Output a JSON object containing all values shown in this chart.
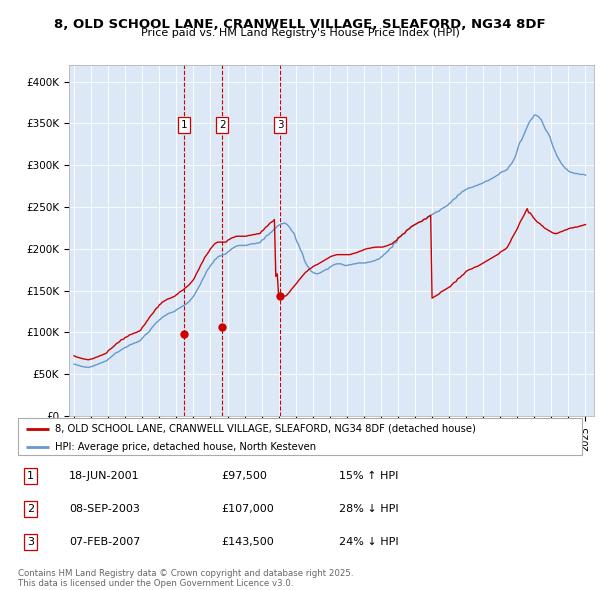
{
  "title": "8, OLD SCHOOL LANE, CRANWELL VILLAGE, SLEAFORD, NG34 8DF",
  "subtitle": "Price paid vs. HM Land Registry's House Price Index (HPI)",
  "ylim": [
    0,
    420000
  ],
  "yticks": [
    0,
    50000,
    100000,
    150000,
    200000,
    250000,
    300000,
    350000,
    400000
  ],
  "ytick_labels": [
    "£0",
    "£50K",
    "£100K",
    "£150K",
    "£200K",
    "£250K",
    "£300K",
    "£350K",
    "£400K"
  ],
  "xlim_start": 1994.7,
  "xlim_end": 2025.5,
  "plot_bg_color": "#dce8f5",
  "red_line_color": "#cc0000",
  "blue_line_color": "#6699cc",
  "transaction_line_color": "#cc0000",
  "transactions": [
    {
      "year": 2001.46,
      "price": 97500,
      "label": "1",
      "date": "18-JUN-2001",
      "price_str": "£97,500",
      "hpi_diff": "15% ↑ HPI"
    },
    {
      "year": 2003.68,
      "price": 107000,
      "label": "2",
      "date": "08-SEP-2003",
      "price_str": "£107,000",
      "hpi_diff": "28% ↓ HPI"
    },
    {
      "year": 2007.1,
      "price": 143500,
      "label": "3",
      "date": "07-FEB-2007",
      "price_str": "£143,500",
      "hpi_diff": "24% ↓ HPI"
    }
  ],
  "legend_line1": "8, OLD SCHOOL LANE, CRANWELL VILLAGE, SLEAFORD, NG34 8DF (detached house)",
  "legend_line2": "HPI: Average price, detached house, North Kesteven",
  "footer": "Contains HM Land Registry data © Crown copyright and database right 2025.\nThis data is licensed under the Open Government Licence v3.0.",
  "hpi_x": [
    1995.0,
    1995.083,
    1995.167,
    1995.25,
    1995.333,
    1995.417,
    1995.5,
    1995.583,
    1995.667,
    1995.75,
    1995.833,
    1995.917,
    1996.0,
    1996.083,
    1996.167,
    1996.25,
    1996.333,
    1996.417,
    1996.5,
    1996.583,
    1996.667,
    1996.75,
    1996.833,
    1996.917,
    1997.0,
    1997.083,
    1997.167,
    1997.25,
    1997.333,
    1997.417,
    1997.5,
    1997.583,
    1997.667,
    1997.75,
    1997.833,
    1997.917,
    1998.0,
    1998.083,
    1998.167,
    1998.25,
    1998.333,
    1998.417,
    1998.5,
    1998.583,
    1998.667,
    1998.75,
    1998.833,
    1998.917,
    1999.0,
    1999.083,
    1999.167,
    1999.25,
    1999.333,
    1999.417,
    1999.5,
    1999.583,
    1999.667,
    1999.75,
    1999.833,
    1999.917,
    2000.0,
    2000.083,
    2000.167,
    2000.25,
    2000.333,
    2000.417,
    2000.5,
    2000.583,
    2000.667,
    2000.75,
    2000.833,
    2000.917,
    2001.0,
    2001.083,
    2001.167,
    2001.25,
    2001.333,
    2001.417,
    2001.5,
    2001.583,
    2001.667,
    2001.75,
    2001.833,
    2001.917,
    2002.0,
    2002.083,
    2002.167,
    2002.25,
    2002.333,
    2002.417,
    2002.5,
    2002.583,
    2002.667,
    2002.75,
    2002.833,
    2002.917,
    2003.0,
    2003.083,
    2003.167,
    2003.25,
    2003.333,
    2003.417,
    2003.5,
    2003.583,
    2003.667,
    2003.75,
    2003.833,
    2003.917,
    2004.0,
    2004.083,
    2004.167,
    2004.25,
    2004.333,
    2004.417,
    2004.5,
    2004.583,
    2004.667,
    2004.75,
    2004.833,
    2004.917,
    2005.0,
    2005.083,
    2005.167,
    2005.25,
    2005.333,
    2005.417,
    2005.5,
    2005.583,
    2005.667,
    2005.75,
    2005.833,
    2005.917,
    2006.0,
    2006.083,
    2006.167,
    2006.25,
    2006.333,
    2006.417,
    2006.5,
    2006.583,
    2006.667,
    2006.75,
    2006.833,
    2006.917,
    2007.0,
    2007.083,
    2007.167,
    2007.25,
    2007.333,
    2007.417,
    2007.5,
    2007.583,
    2007.667,
    2007.75,
    2007.833,
    2007.917,
    2008.0,
    2008.083,
    2008.167,
    2008.25,
    2008.333,
    2008.417,
    2008.5,
    2008.583,
    2008.667,
    2008.75,
    2008.833,
    2008.917,
    2009.0,
    2009.083,
    2009.167,
    2009.25,
    2009.333,
    2009.417,
    2009.5,
    2009.583,
    2009.667,
    2009.75,
    2009.833,
    2009.917,
    2010.0,
    2010.083,
    2010.167,
    2010.25,
    2010.333,
    2010.417,
    2010.5,
    2010.583,
    2010.667,
    2010.75,
    2010.833,
    2010.917,
    2011.0,
    2011.083,
    2011.167,
    2011.25,
    2011.333,
    2011.417,
    2011.5,
    2011.583,
    2011.667,
    2011.75,
    2011.833,
    2011.917,
    2012.0,
    2012.083,
    2012.167,
    2012.25,
    2012.333,
    2012.417,
    2012.5,
    2012.583,
    2012.667,
    2012.75,
    2012.833,
    2012.917,
    2013.0,
    2013.083,
    2013.167,
    2013.25,
    2013.333,
    2013.417,
    2013.5,
    2013.583,
    2013.667,
    2013.75,
    2013.833,
    2013.917,
    2014.0,
    2014.083,
    2014.167,
    2014.25,
    2014.333,
    2014.417,
    2014.5,
    2014.583,
    2014.667,
    2014.75,
    2014.833,
    2014.917,
    2015.0,
    2015.083,
    2015.167,
    2015.25,
    2015.333,
    2015.417,
    2015.5,
    2015.583,
    2015.667,
    2015.75,
    2015.833,
    2015.917,
    2016.0,
    2016.083,
    2016.167,
    2016.25,
    2016.333,
    2016.417,
    2016.5,
    2016.583,
    2016.667,
    2016.75,
    2016.833,
    2016.917,
    2017.0,
    2017.083,
    2017.167,
    2017.25,
    2017.333,
    2017.417,
    2017.5,
    2017.583,
    2017.667,
    2017.75,
    2017.833,
    2017.917,
    2018.0,
    2018.083,
    2018.167,
    2018.25,
    2018.333,
    2018.417,
    2018.5,
    2018.583,
    2018.667,
    2018.75,
    2018.833,
    2018.917,
    2019.0,
    2019.083,
    2019.167,
    2019.25,
    2019.333,
    2019.417,
    2019.5,
    2019.583,
    2019.667,
    2019.75,
    2019.833,
    2019.917,
    2020.0,
    2020.083,
    2020.167,
    2020.25,
    2020.333,
    2020.417,
    2020.5,
    2020.583,
    2020.667,
    2020.75,
    2020.833,
    2020.917,
    2021.0,
    2021.083,
    2021.167,
    2021.25,
    2021.333,
    2021.417,
    2021.5,
    2021.583,
    2021.667,
    2021.75,
    2021.833,
    2021.917,
    2022.0,
    2022.083,
    2022.167,
    2022.25,
    2022.333,
    2022.417,
    2022.5,
    2022.583,
    2022.667,
    2022.75,
    2022.833,
    2022.917,
    2023.0,
    2023.083,
    2023.167,
    2023.25,
    2023.333,
    2023.417,
    2023.5,
    2023.583,
    2023.667,
    2023.75,
    2023.833,
    2023.917,
    2024.0,
    2024.083,
    2024.167,
    2024.25,
    2024.333,
    2024.417,
    2024.5,
    2024.583,
    2024.667,
    2024.75,
    2024.833,
    2024.917,
    2025.0
  ],
  "hpi_y": [
    62000,
    61500,
    61000,
    60500,
    60000,
    59500,
    59000,
    58800,
    58500,
    58200,
    58000,
    58500,
    59000,
    59500,
    60000,
    61000,
    61500,
    62000,
    63000,
    63500,
    64000,
    65000,
    65500,
    66000,
    68000,
    69000,
    70500,
    72000,
    73500,
    75000,
    76000,
    76500,
    77500,
    79000,
    80000,
    81000,
    82000,
    82500,
    83500,
    85000,
    85500,
    86000,
    87000,
    87500,
    88000,
    89000,
    89500,
    91000,
    93000,
    95000,
    97000,
    98000,
    99500,
    101000,
    104000,
    106000,
    108000,
    110000,
    112000,
    113000,
    115000,
    116000,
    118000,
    119000,
    120000,
    121000,
    122000,
    123000,
    123500,
    124000,
    124500,
    125500,
    127000,
    128000,
    129000,
    130000,
    131000,
    132000,
    133000,
    134000,
    135500,
    137000,
    139000,
    141000,
    143000,
    146000,
    149000,
    152000,
    155000,
    158000,
    162000,
    165000,
    168000,
    172000,
    175000,
    177000,
    180000,
    182000,
    184000,
    187000,
    188000,
    190000,
    191000,
    191500,
    192000,
    193000,
    193500,
    194000,
    196000,
    197000,
    198500,
    200000,
    201000,
    202000,
    203000,
    203500,
    204000,
    204000,
    204000,
    204000,
    204000,
    204000,
    204500,
    205000,
    205500,
    206000,
    206000,
    206000,
    206500,
    207000,
    207000,
    207500,
    210000,
    211000,
    212000,
    215000,
    216000,
    217000,
    219000,
    220000,
    222000,
    224000,
    225000,
    227000,
    228000,
    229000,
    230000,
    230000,
    231000,
    230000,
    229000,
    227000,
    225000,
    222000,
    220000,
    218000,
    212000,
    208000,
    205000,
    200000,
    197000,
    193000,
    187000,
    183000,
    180000,
    178000,
    175000,
    173000,
    172000,
    171000,
    170500,
    170000,
    170500,
    171000,
    172000,
    173000,
    174000,
    175000,
    175500,
    176000,
    178000,
    179000,
    180000,
    181000,
    181500,
    182000,
    182000,
    182000,
    182000,
    181000,
    180500,
    180000,
    180000,
    180500,
    181000,
    181000,
    181500,
    182000,
    182000,
    182500,
    183000,
    183000,
    183000,
    183000,
    183000,
    183000,
    183500,
    184000,
    184000,
    184500,
    185000,
    185500,
    186000,
    187000,
    187500,
    188000,
    190000,
    191000,
    193000,
    194000,
    196000,
    197000,
    200000,
    201000,
    202000,
    206000,
    207000,
    208000,
    212000,
    214000,
    215000,
    217000,
    218000,
    219000,
    222000,
    223000,
    224000,
    226000,
    227000,
    228000,
    229000,
    230000,
    231000,
    232000,
    232500,
    233000,
    235000,
    235500,
    236000,
    238000,
    239000,
    240000,
    241000,
    242000,
    243000,
    244000,
    244500,
    245000,
    247000,
    248000,
    249000,
    250000,
    251000,
    252000,
    254000,
    255000,
    257000,
    259000,
    260000,
    261000,
    264000,
    265000,
    266000,
    268000,
    269000,
    270000,
    271000,
    272000,
    273000,
    273000,
    273500,
    274000,
    275000,
    275500,
    276000,
    277000,
    277500,
    278000,
    279000,
    280000,
    281000,
    281000,
    282000,
    283000,
    284000,
    285000,
    286000,
    287000,
    288000,
    289000,
    291000,
    292000,
    292500,
    293000,
    294000,
    295000,
    298000,
    300000,
    302000,
    305000,
    308000,
    312000,
    318000,
    324000,
    328000,
    330000,
    334000,
    338000,
    342000,
    346000,
    350000,
    353000,
    355000,
    357000,
    360000,
    360000,
    359000,
    358000,
    356000,
    354000,
    350000,
    346000,
    342000,
    340000,
    337000,
    334000,
    328000,
    323000,
    319000,
    315000,
    311000,
    308000,
    305000,
    302000,
    300000,
    298000,
    296000,
    295000,
    293000,
    292000,
    291500,
    291000,
    290500,
    290000,
    290000,
    289500,
    289000,
    289000,
    289000,
    289000,
    288000
  ],
  "red_x": [
    1995.0,
    1995.083,
    1995.167,
    1995.25,
    1995.333,
    1995.417,
    1995.5,
    1995.583,
    1995.667,
    1995.75,
    1995.833,
    1995.917,
    1996.0,
    1996.083,
    1996.167,
    1996.25,
    1996.333,
    1996.417,
    1996.5,
    1996.583,
    1996.667,
    1996.75,
    1996.833,
    1996.917,
    1997.0,
    1997.083,
    1997.167,
    1997.25,
    1997.333,
    1997.417,
    1997.5,
    1997.583,
    1997.667,
    1997.75,
    1997.833,
    1997.917,
    1998.0,
    1998.083,
    1998.167,
    1998.25,
    1998.333,
    1998.417,
    1998.5,
    1998.583,
    1998.667,
    1998.75,
    1998.833,
    1998.917,
    1999.0,
    1999.083,
    1999.167,
    1999.25,
    1999.333,
    1999.417,
    1999.5,
    1999.583,
    1999.667,
    1999.75,
    1999.833,
    1999.917,
    2000.0,
    2000.083,
    2000.167,
    2000.25,
    2000.333,
    2000.417,
    2000.5,
    2000.583,
    2000.667,
    2000.75,
    2000.833,
    2000.917,
    2001.0,
    2001.083,
    2001.167,
    2001.25,
    2001.333,
    2001.417,
    2001.5,
    2001.583,
    2001.667,
    2001.75,
    2001.833,
    2001.917,
    2002.0,
    2002.083,
    2002.167,
    2002.25,
    2002.333,
    2002.417,
    2002.5,
    2002.583,
    2002.667,
    2002.75,
    2002.833,
    2002.917,
    2003.0,
    2003.083,
    2003.167,
    2003.25,
    2003.333,
    2003.417,
    2003.5,
    2003.583,
    2003.667,
    2003.75,
    2003.833,
    2003.917,
    2004.0,
    2004.083,
    2004.167,
    2004.25,
    2004.333,
    2004.417,
    2004.5,
    2004.583,
    2004.667,
    2004.75,
    2004.833,
    2004.917,
    2005.0,
    2005.083,
    2005.167,
    2005.25,
    2005.333,
    2005.417,
    2005.5,
    2005.583,
    2005.667,
    2005.75,
    2005.833,
    2005.917,
    2006.0,
    2006.083,
    2006.167,
    2006.25,
    2006.333,
    2006.417,
    2006.5,
    2006.583,
    2006.667,
    2006.75,
    2006.833,
    2006.917,
    2007.0,
    2007.083,
    2007.167,
    2007.25,
    2007.333,
    2007.417,
    2007.5,
    2007.583,
    2007.667,
    2007.75,
    2007.833,
    2007.917,
    2008.0,
    2008.083,
    2008.167,
    2008.25,
    2008.333,
    2008.417,
    2008.5,
    2008.583,
    2008.667,
    2008.75,
    2008.833,
    2008.917,
    2009.0,
    2009.083,
    2009.167,
    2009.25,
    2009.333,
    2009.417,
    2009.5,
    2009.583,
    2009.667,
    2009.75,
    2009.833,
    2009.917,
    2010.0,
    2010.083,
    2010.167,
    2010.25,
    2010.333,
    2010.417,
    2010.5,
    2010.583,
    2010.667,
    2010.75,
    2010.833,
    2010.917,
    2011.0,
    2011.083,
    2011.167,
    2011.25,
    2011.333,
    2011.417,
    2011.5,
    2011.583,
    2011.667,
    2011.75,
    2011.833,
    2011.917,
    2012.0,
    2012.083,
    2012.167,
    2012.25,
    2012.333,
    2012.417,
    2012.5,
    2012.583,
    2012.667,
    2012.75,
    2012.833,
    2012.917,
    2013.0,
    2013.083,
    2013.167,
    2013.25,
    2013.333,
    2013.417,
    2013.5,
    2013.583,
    2013.667,
    2013.75,
    2013.833,
    2013.917,
    2014.0,
    2014.083,
    2014.167,
    2014.25,
    2014.333,
    2014.417,
    2014.5,
    2014.583,
    2014.667,
    2014.75,
    2014.833,
    2014.917,
    2015.0,
    2015.083,
    2015.167,
    2015.25,
    2015.333,
    2015.417,
    2015.5,
    2015.583,
    2015.667,
    2015.75,
    2015.833,
    2015.917,
    2016.0,
    2016.083,
    2016.167,
    2016.25,
    2016.333,
    2016.417,
    2016.5,
    2016.583,
    2016.667,
    2016.75,
    2016.833,
    2016.917,
    2017.0,
    2017.083,
    2017.167,
    2017.25,
    2017.333,
    2017.417,
    2017.5,
    2017.583,
    2017.667,
    2017.75,
    2017.833,
    2017.917,
    2018.0,
    2018.083,
    2018.167,
    2018.25,
    2018.333,
    2018.417,
    2018.5,
    2018.583,
    2018.667,
    2018.75,
    2018.833,
    2018.917,
    2019.0,
    2019.083,
    2019.167,
    2019.25,
    2019.333,
    2019.417,
    2019.5,
    2019.583,
    2019.667,
    2019.75,
    2019.833,
    2019.917,
    2020.0,
    2020.083,
    2020.167,
    2020.25,
    2020.333,
    2020.417,
    2020.5,
    2020.583,
    2020.667,
    2020.75,
    2020.833,
    2020.917,
    2021.0,
    2021.083,
    2021.167,
    2021.25,
    2021.333,
    2021.417,
    2021.5,
    2021.583,
    2021.667,
    2021.75,
    2021.833,
    2021.917,
    2022.0,
    2022.083,
    2022.167,
    2022.25,
    2022.333,
    2022.417,
    2022.5,
    2022.583,
    2022.667,
    2022.75,
    2022.833,
    2022.917,
    2023.0,
    2023.083,
    2023.167,
    2023.25,
    2023.333,
    2023.417,
    2023.5,
    2023.583,
    2023.667,
    2023.75,
    2023.833,
    2023.917,
    2024.0,
    2024.083,
    2024.167,
    2024.25,
    2024.333,
    2024.417,
    2024.5,
    2024.583,
    2024.667,
    2024.75,
    2024.833,
    2024.917,
    2025.0
  ],
  "red_y": [
    72000,
    71000,
    70500,
    70000,
    69500,
    69000,
    68500,
    68200,
    67800,
    67500,
    67200,
    67600,
    68000,
    68500,
    69000,
    70000,
    70500,
    71000,
    72000,
    72500,
    73000,
    74000,
    74500,
    75500,
    78000,
    79500,
    80500,
    82000,
    83500,
    85000,
    87000,
    87500,
    89000,
    91000,
    91500,
    92000,
    94000,
    94500,
    95500,
    97000,
    97500,
    98000,
    99000,
    99500,
    100000,
    101000,
    101500,
    103000,
    106000,
    108000,
    110000,
    113000,
    115000,
    118000,
    120000,
    122000,
    124000,
    127000,
    129000,
    130000,
    133000,
    134000,
    136000,
    137000,
    138000,
    139000,
    140000,
    140500,
    141000,
    142000,
    142500,
    143500,
    145000,
    146000,
    148000,
    149000,
    150000,
    151000,
    153000,
    154000,
    155500,
    157000,
    159000,
    161000,
    163000,
    166000,
    170000,
    173000,
    176000,
    180000,
    183000,
    186000,
    190000,
    192000,
    194500,
    197000,
    200000,
    202000,
    204000,
    206000,
    207000,
    208000,
    208000,
    208000,
    208000,
    208000,
    208000,
    208000,
    210000,
    211000,
    212000,
    213000,
    213500,
    214000,
    215000,
    215000,
    215000,
    215000,
    215000,
    215000,
    215000,
    215000,
    215500,
    216000,
    216000,
    216500,
    217000,
    217000,
    217500,
    218000,
    218000,
    218500,
    221000,
    222000,
    224000,
    226000,
    227000,
    229000,
    231000,
    232000,
    233000,
    235000,
    167000,
    170000,
    143500,
    143500,
    143500,
    143500,
    143500,
    143500,
    145000,
    147000,
    149000,
    151500,
    153500,
    155500,
    157500,
    159500,
    162000,
    164000,
    166000,
    168000,
    170000,
    172000,
    173000,
    175000,
    176000,
    177000,
    178500,
    179500,
    180500,
    181000,
    182000,
    183000,
    184000,
    185000,
    186000,
    187000,
    188000,
    189000,
    190000,
    191000,
    191500,
    192000,
    192500,
    193000,
    193000,
    193000,
    193000,
    193000,
    193000,
    193000,
    193000,
    193000,
    193000,
    193500,
    194000,
    194500,
    195000,
    195500,
    196000,
    197000,
    197500,
    198000,
    199000,
    199500,
    200000,
    200500,
    200500,
    201000,
    201500,
    201500,
    202000,
    202000,
    202000,
    202000,
    202000,
    202000,
    202500,
    203000,
    203500,
    204000,
    205000,
    205500,
    206000,
    208000,
    209000,
    210000,
    213000,
    214000,
    215000,
    217000,
    218000,
    219000,
    222000,
    223000,
    224000,
    226000,
    227000,
    228000,
    229000,
    230000,
    231000,
    232000,
    232500,
    233000,
    235000,
    235500,
    236000,
    238000,
    239000,
    240000,
    141000,
    142000,
    143000,
    144000,
    145000,
    146000,
    148000,
    149000,
    150000,
    151000,
    152000,
    153000,
    154000,
    155000,
    157000,
    159000,
    160000,
    161000,
    164000,
    165000,
    166000,
    168000,
    169000,
    171000,
    173000,
    174000,
    175000,
    175500,
    176000,
    177000,
    178000,
    178500,
    179000,
    180000,
    181000,
    182000,
    183000,
    184000,
    185000,
    186000,
    187000,
    188000,
    189000,
    190000,
    191000,
    192000,
    193000,
    194000,
    196000,
    197000,
    198000,
    199000,
    200000,
    202000,
    205000,
    208000,
    212000,
    215000,
    218000,
    221000,
    224000,
    228000,
    232000,
    235000,
    238000,
    241000,
    245000,
    248000,
    243000,
    243000,
    241000,
    238000,
    236000,
    234000,
    232000,
    231000,
    230000,
    228000,
    227000,
    225000,
    224000,
    223000,
    222000,
    221000,
    220000,
    219000,
    218500,
    218000,
    218500,
    219000,
    220000,
    220500,
    221000,
    222000,
    222500,
    223000,
    224000,
    224500,
    225000,
    225000,
    225500,
    226000,
    226000,
    226500,
    227000,
    227500,
    228000,
    228500,
    229000
  ]
}
